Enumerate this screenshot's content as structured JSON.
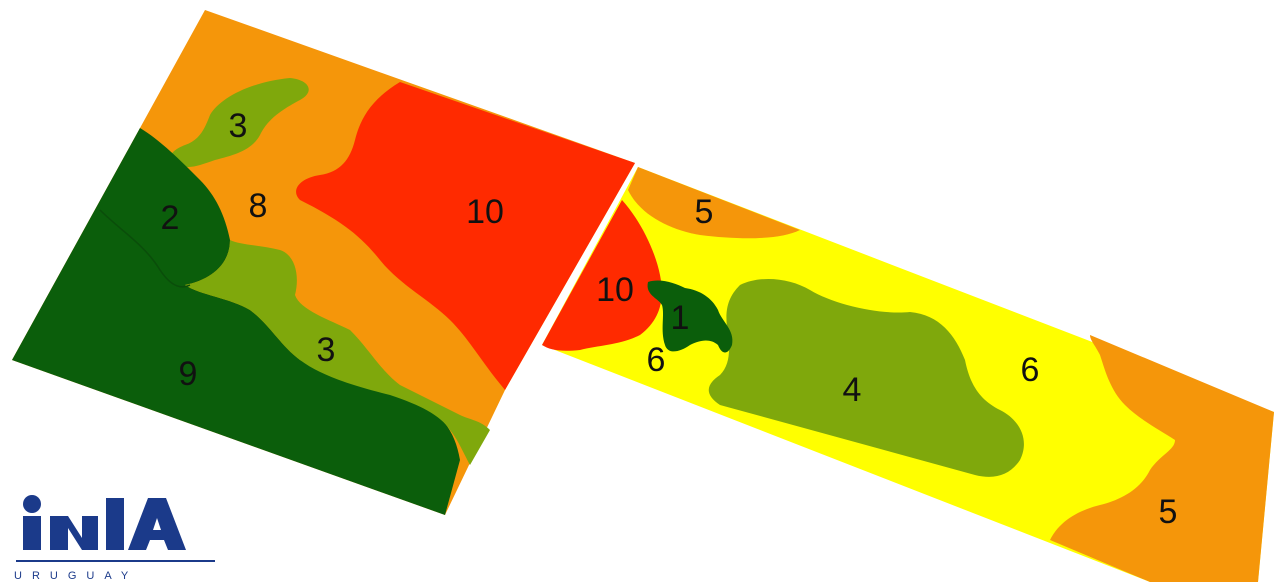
{
  "colors": {
    "class_1": "#0b5e0b",
    "class_2": "#0b5e0b",
    "class_3": "#7fa80c",
    "class_4": "#7fa80c",
    "class_5": "#f5960a",
    "class_6": "#ffff00",
    "class_8": "#f5960a",
    "class_9": "#0b5e0b",
    "class_10": "#ff2a00",
    "logo_blue": "#1b3a8a"
  },
  "zones": {
    "z1": "1",
    "z2": "2",
    "z3_top": "3",
    "z3_mid": "3",
    "z4": "4",
    "z5_top": "5",
    "z5_bottom": "5",
    "z6_left": "6",
    "z6_right": "6",
    "z8": "8",
    "z9": "9",
    "z10_left": "10",
    "z10_right": "10"
  },
  "logo": {
    "brand": "INIA",
    "subtitle": "URUGUAY"
  }
}
